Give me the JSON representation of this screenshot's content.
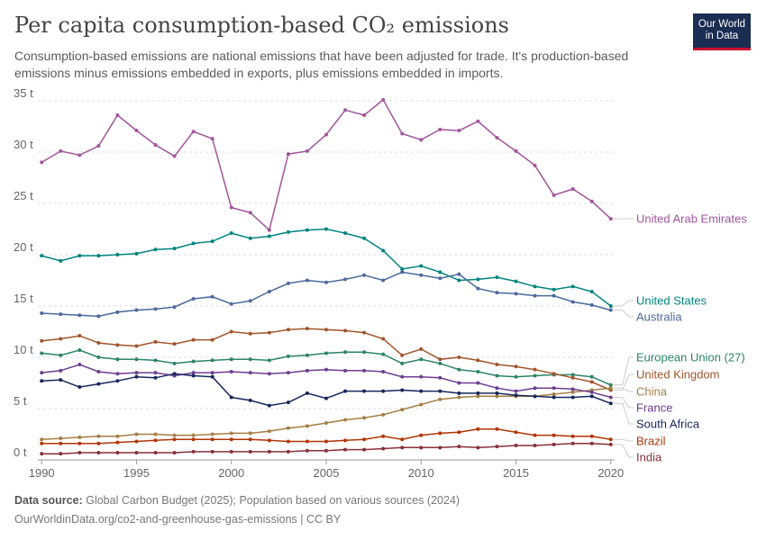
{
  "header": {
    "title": "Per capita consumption-based CO₂ emissions",
    "subtitle": "Consumption-based emissions are national emissions that have been adjusted for trade. It's production-based emissions minus emissions embedded in exports, plus emissions embedded in imports.",
    "logo_line1": "Our World",
    "logo_line2": "in Data"
  },
  "footer": {
    "source_label": "Data source:",
    "source_text": "Global Carbon Budget (2025); Population based on various sources (2024)",
    "url_text": "OurWorldinData.org/co2-and-greenhouse-gas-emissions | CC BY"
  },
  "chart_data": {
    "type": "line",
    "x": [
      1990,
      1991,
      1992,
      1993,
      1994,
      1995,
      1996,
      1997,
      1998,
      1999,
      2000,
      2001,
      2002,
      2003,
      2004,
      2005,
      2006,
      2007,
      2008,
      2009,
      2010,
      2011,
      2012,
      2013,
      2014,
      2015,
      2016,
      2017,
      2018,
      2019,
      2020
    ],
    "xlim": [
      1989.8,
      2020.2
    ],
    "ylim": [
      0,
      35
    ],
    "x_ticks": [
      1990,
      1995,
      2000,
      2005,
      2010,
      2015,
      2020
    ],
    "y_ticks": [
      {
        "value": 0,
        "label": "0 t"
      },
      {
        "value": 5,
        "label": "5 t"
      },
      {
        "value": 10,
        "label": "10 t"
      },
      {
        "value": 15,
        "label": "15 t"
      },
      {
        "value": 20,
        "label": "20 t"
      },
      {
        "value": 25,
        "label": "25 t"
      },
      {
        "value": 30,
        "label": "30 t"
      },
      {
        "value": 35,
        "label": "35 t"
      }
    ],
    "grid": "horizontal-dashed",
    "legend": "right-inline",
    "series": [
      {
        "name": "United Arab Emirates",
        "color": "#a2559c",
        "key": "uae",
        "values": [
          29.0,
          30.1,
          29.7,
          30.6,
          33.6,
          32.1,
          30.7,
          29.6,
          32.0,
          31.3,
          24.6,
          24.1,
          22.4,
          29.8,
          30.1,
          31.7,
          34.1,
          33.6,
          35.1,
          31.8,
          31.2,
          32.2,
          32.1,
          33.0,
          31.4,
          30.1,
          28.7,
          25.8,
          26.4,
          25.2,
          23.5
        ]
      },
      {
        "name": "United States",
        "color": "#00847e",
        "key": "us",
        "values": [
          19.9,
          19.4,
          19.9,
          19.9,
          20.0,
          20.1,
          20.5,
          20.6,
          21.1,
          21.3,
          22.1,
          21.6,
          21.8,
          22.2,
          22.4,
          22.5,
          22.1,
          21.6,
          20.4,
          18.6,
          18.9,
          18.3,
          17.5,
          17.6,
          17.8,
          17.4,
          16.9,
          16.6,
          16.9,
          16.4,
          15.0
        ]
      },
      {
        "name": "Australia",
        "color": "#4c6a9c",
        "key": "aus",
        "values": [
          14.3,
          14.2,
          14.1,
          14.0,
          14.4,
          14.6,
          14.7,
          14.9,
          15.7,
          15.9,
          15.2,
          15.5,
          16.4,
          17.2,
          17.5,
          17.3,
          17.6,
          18.0,
          17.5,
          18.3,
          18.0,
          17.7,
          18.1,
          16.7,
          16.3,
          16.2,
          16.0,
          16.0,
          15.4,
          15.1,
          14.6
        ]
      },
      {
        "name": "European Union (27)",
        "color": "#2c8465",
        "key": "eu",
        "values": [
          10.4,
          10.2,
          10.7,
          10.0,
          9.8,
          9.8,
          9.7,
          9.4,
          9.6,
          9.7,
          9.8,
          9.8,
          9.7,
          10.1,
          10.2,
          10.4,
          10.5,
          10.5,
          10.3,
          9.4,
          9.8,
          9.4,
          8.8,
          8.6,
          8.2,
          8.1,
          8.2,
          8.3,
          8.3,
          8.1,
          7.3
        ]
      },
      {
        "name": "United Kingdom",
        "color": "#a1552c",
        "key": "uk",
        "values": [
          11.6,
          11.8,
          12.1,
          11.4,
          11.2,
          11.1,
          11.5,
          11.3,
          11.7,
          11.7,
          12.5,
          12.3,
          12.4,
          12.7,
          12.8,
          12.7,
          12.6,
          12.4,
          11.8,
          10.2,
          10.8,
          9.8,
          10.0,
          9.7,
          9.3,
          9.1,
          8.8,
          8.4,
          8.0,
          7.6,
          6.8
        ]
      },
      {
        "name": "China",
        "color": "#a57f45",
        "key": "china",
        "values": [
          2.0,
          2.1,
          2.2,
          2.3,
          2.3,
          2.5,
          2.5,
          2.4,
          2.4,
          2.5,
          2.6,
          2.6,
          2.8,
          3.1,
          3.3,
          3.6,
          3.9,
          4.1,
          4.4,
          4.9,
          5.4,
          5.9,
          6.1,
          6.2,
          6.2,
          6.2,
          6.2,
          6.4,
          6.6,
          6.8,
          7.0
        ]
      },
      {
        "name": "France",
        "color": "#6d3e91",
        "key": "france",
        "values": [
          8.5,
          8.7,
          9.3,
          8.6,
          8.4,
          8.5,
          8.5,
          8.2,
          8.5,
          8.5,
          8.6,
          8.5,
          8.4,
          8.5,
          8.7,
          8.8,
          8.7,
          8.7,
          8.6,
          8.1,
          8.1,
          8.0,
          7.5,
          7.5,
          7.0,
          6.7,
          7.0,
          7.0,
          6.9,
          6.6,
          6.1
        ]
      },
      {
        "name": "South Africa",
        "color": "#18275c",
        "key": "sa",
        "values": [
          7.7,
          7.8,
          7.1,
          7.4,
          7.7,
          8.1,
          8.0,
          8.4,
          8.2,
          8.1,
          6.1,
          5.8,
          5.3,
          5.6,
          6.5,
          6.0,
          6.7,
          6.7,
          6.7,
          6.8,
          6.7,
          6.7,
          6.5,
          6.5,
          6.5,
          6.3,
          6.2,
          6.1,
          6.1,
          6.2,
          5.5
        ]
      },
      {
        "name": "Brazil",
        "color": "#b13507",
        "key": "brazil",
        "values": [
          1.6,
          1.6,
          1.6,
          1.6,
          1.7,
          1.8,
          1.9,
          2.0,
          2.0,
          2.0,
          2.0,
          2.0,
          1.9,
          1.8,
          1.8,
          1.8,
          1.9,
          2.0,
          2.3,
          2.0,
          2.4,
          2.6,
          2.7,
          3.0,
          3.0,
          2.7,
          2.4,
          2.4,
          2.3,
          2.3,
          2.0
        ]
      },
      {
        "name": "India",
        "color": "#883039",
        "key": "india",
        "values": [
          0.6,
          0.6,
          0.7,
          0.7,
          0.7,
          0.7,
          0.7,
          0.7,
          0.8,
          0.8,
          0.8,
          0.8,
          0.8,
          0.8,
          0.9,
          0.9,
          1.0,
          1.0,
          1.1,
          1.2,
          1.2,
          1.2,
          1.3,
          1.2,
          1.3,
          1.4,
          1.4,
          1.5,
          1.6,
          1.6,
          1.5
        ]
      }
    ]
  }
}
